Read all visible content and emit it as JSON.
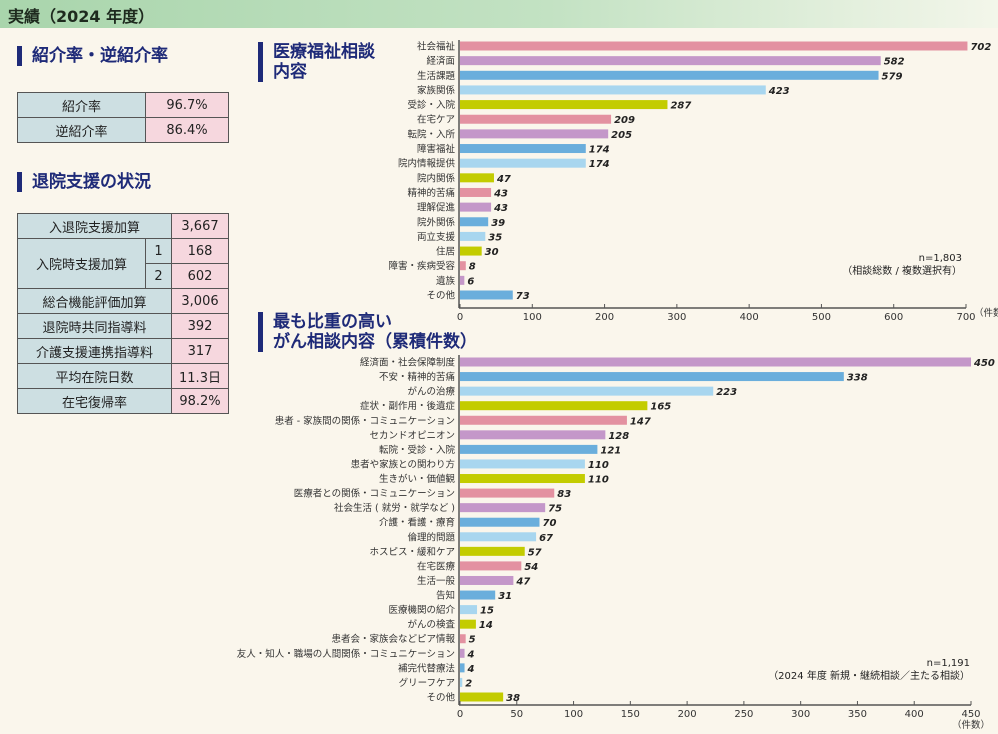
{
  "header": {
    "title": "実績（2024 年度）"
  },
  "referral": {
    "title": "紹介率・逆紹介率",
    "rows": [
      {
        "label": "紹介率",
        "value": "96.7%"
      },
      {
        "label": "逆紹介率",
        "value": "86.4%"
      }
    ]
  },
  "discharge": {
    "title": "退院支援の状況",
    "rows": [
      {
        "label": "入退院支援加算",
        "value": "3,667"
      },
      {
        "label": "入院時支援加算",
        "sub": [
          {
            "num": "1",
            "value": "168"
          },
          {
            "num": "2",
            "value": "602"
          }
        ]
      },
      {
        "label": "総合機能評価加算",
        "value": "3,006"
      },
      {
        "label": "退院時共同指導料",
        "value": "392"
      },
      {
        "label": "介護支援連携指導料",
        "value": "317"
      },
      {
        "label": "平均在院日数",
        "value": "11.3日"
      },
      {
        "label": "在宅復帰率",
        "value": "98.2%"
      }
    ]
  },
  "palette": {
    "pink": "#e391a1",
    "purple": "#c497c9",
    "blue": "#6aaedc",
    "lightblue": "#a8d6ef",
    "lime": "#c3cc00"
  },
  "chart_data": [
    {
      "type": "bar",
      "orientation": "horizontal",
      "title": "医療福祉相談\n内容",
      "title_lines": [
        "医療福祉相談",
        "内容"
      ],
      "categories": [
        "社会福祉",
        "経済面",
        "生活課題",
        "家族関係",
        "受診・入院",
        "在宅ケア",
        "転院・入所",
        "障害福祉",
        "院内情報提供",
        "院内関係",
        "精神的苦痛",
        "理解促進",
        "院外関係",
        "両立支援",
        "住居",
        "障害・疾病受容",
        "遺族",
        "その他"
      ],
      "values": [
        702,
        582,
        579,
        423,
        287,
        209,
        205,
        174,
        174,
        47,
        43,
        43,
        39,
        35,
        30,
        8,
        6,
        73
      ],
      "colors": [
        "pink",
        "purple",
        "blue",
        "lightblue",
        "lime",
        "pink",
        "purple",
        "blue",
        "lightblue",
        "lime",
        "pink",
        "purple",
        "blue",
        "lightblue",
        "lime",
        "pink",
        "purple",
        "blue"
      ],
      "xlim": [
        0,
        700
      ],
      "ticks": [
        0,
        100,
        200,
        300,
        400,
        500,
        600,
        700
      ],
      "xunit": "（件数）",
      "note": [
        "n=1,803",
        "（相談総数 / 複数選択有）"
      ]
    },
    {
      "type": "bar",
      "orientation": "horizontal",
      "title": "最も比重の高い\nがん相談内容（累積件数）",
      "title_lines": [
        "最も比重の高い",
        "がん相談内容（累積件数）"
      ],
      "categories": [
        "経済面・社会保障制度",
        "不安・精神的苦痛",
        "がんの治療",
        "症状・副作用・後遺症",
        "患者 - 家族間の関係・コミュニケーション",
        "セカンドオピニオン",
        "転院・受診・入院",
        "患者や家族との関わり方",
        "生きがい・価値観",
        "医療者との関係・コミュニケーション",
        "社会生活 ( 就労・就学など )",
        "介護・看護・療育",
        "倫理的問題",
        "ホスピス・緩和ケア",
        "在宅医療",
        "生活一般",
        "告知",
        "医療機関の紹介",
        "がんの検査",
        "患者会・家族会などピア情報",
        "友人・知人・職場の人間関係・コミュニケーション",
        "補完代替療法",
        "グリーフケア",
        "その他"
      ],
      "values": [
        450,
        338,
        223,
        165,
        147,
        128,
        121,
        110,
        110,
        83,
        75,
        70,
        67,
        57,
        54,
        47,
        31,
        15,
        14,
        5,
        4,
        4,
        2,
        38
      ],
      "colors": [
        "purple",
        "blue",
        "lightblue",
        "lime",
        "pink",
        "purple",
        "blue",
        "lightblue",
        "lime",
        "pink",
        "purple",
        "blue",
        "lightblue",
        "lime",
        "pink",
        "purple",
        "blue",
        "lightblue",
        "lime",
        "pink",
        "purple",
        "blue",
        "lightblue",
        "lime"
      ],
      "xlim": [
        0,
        450
      ],
      "ticks": [
        0,
        50,
        100,
        150,
        200,
        250,
        300,
        350,
        400,
        450
      ],
      "xunit": "（件数）",
      "note": [
        "n=1,191",
        "（2024 年度 新規・継続相談／主たる相談）"
      ]
    }
  ]
}
